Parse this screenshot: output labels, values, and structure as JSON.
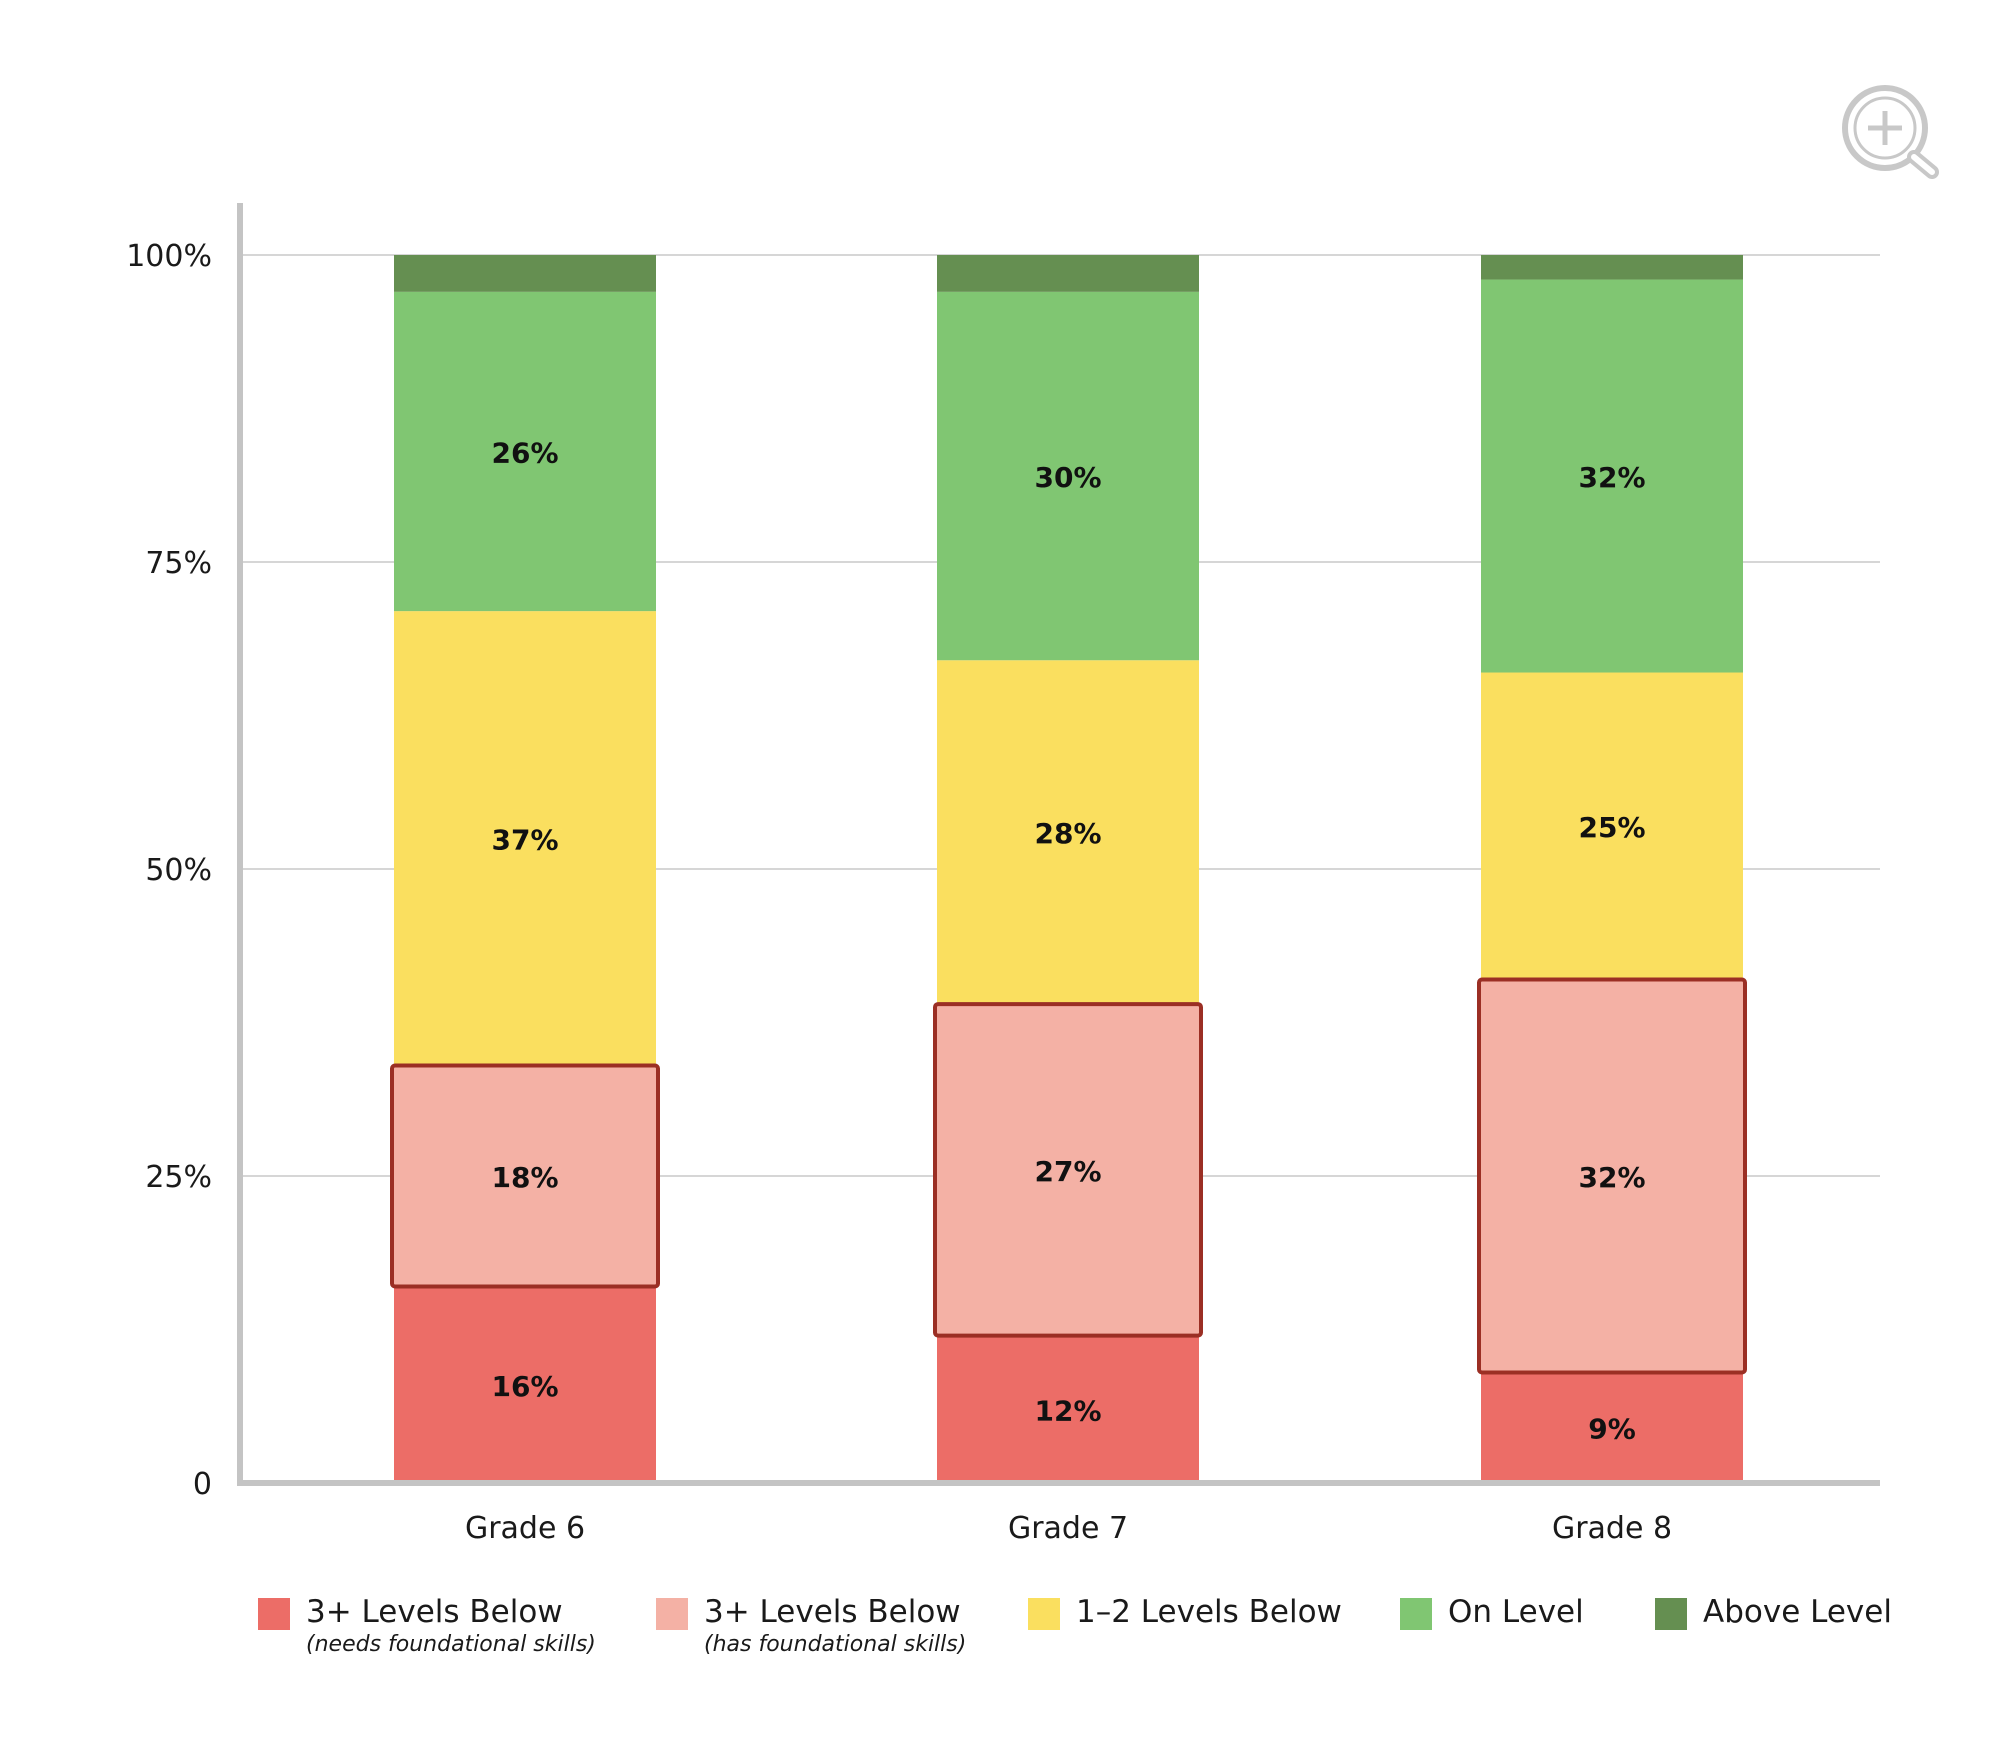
{
  "chart_data": {
    "type": "bar",
    "stacked": true,
    "categories": [
      "Grade 6",
      "Grade 7",
      "Grade 8"
    ],
    "y_ticks": [
      "0",
      "25%",
      "50%",
      "75%",
      "100%"
    ],
    "ylim": [
      0,
      100
    ],
    "grid": true,
    "legend_position": "bottom",
    "series": [
      {
        "name": "3+ Levels Below",
        "subtitle": "needs foundational skills",
        "color": "#ec6d67",
        "values": [
          16,
          12,
          9
        ],
        "labels": [
          "16%",
          "12%",
          "9%"
        ],
        "outlined": false
      },
      {
        "name": "3+ Levels Below",
        "subtitle": "has foundational skills",
        "color": "#f4b1a5",
        "values": [
          18,
          27,
          32
        ],
        "labels": [
          "18%",
          "27%",
          "32%"
        ],
        "outlined": true
      },
      {
        "name": "1–2 Levels Below",
        "subtitle": "",
        "color": "#fadf5f",
        "values": [
          37,
          28,
          25
        ],
        "labels": [
          "37%",
          "28%",
          "25%"
        ],
        "outlined": false
      },
      {
        "name": "On Level",
        "subtitle": "",
        "color": "#80c672",
        "values": [
          26,
          30,
          32
        ],
        "labels": [
          "26%",
          "30%",
          "32%"
        ],
        "outlined": false
      },
      {
        "name": "Above Level",
        "subtitle": "",
        "color": "#658f51",
        "values": [
          3,
          3,
          2
        ],
        "labels": [
          "",
          "",
          ""
        ],
        "outlined": false
      }
    ],
    "outline_color": "#9b2f24"
  },
  "legend_parens": {
    "open": "(",
    "close": ")"
  },
  "zoom_icon": "zoom-in-magnifier-icon"
}
